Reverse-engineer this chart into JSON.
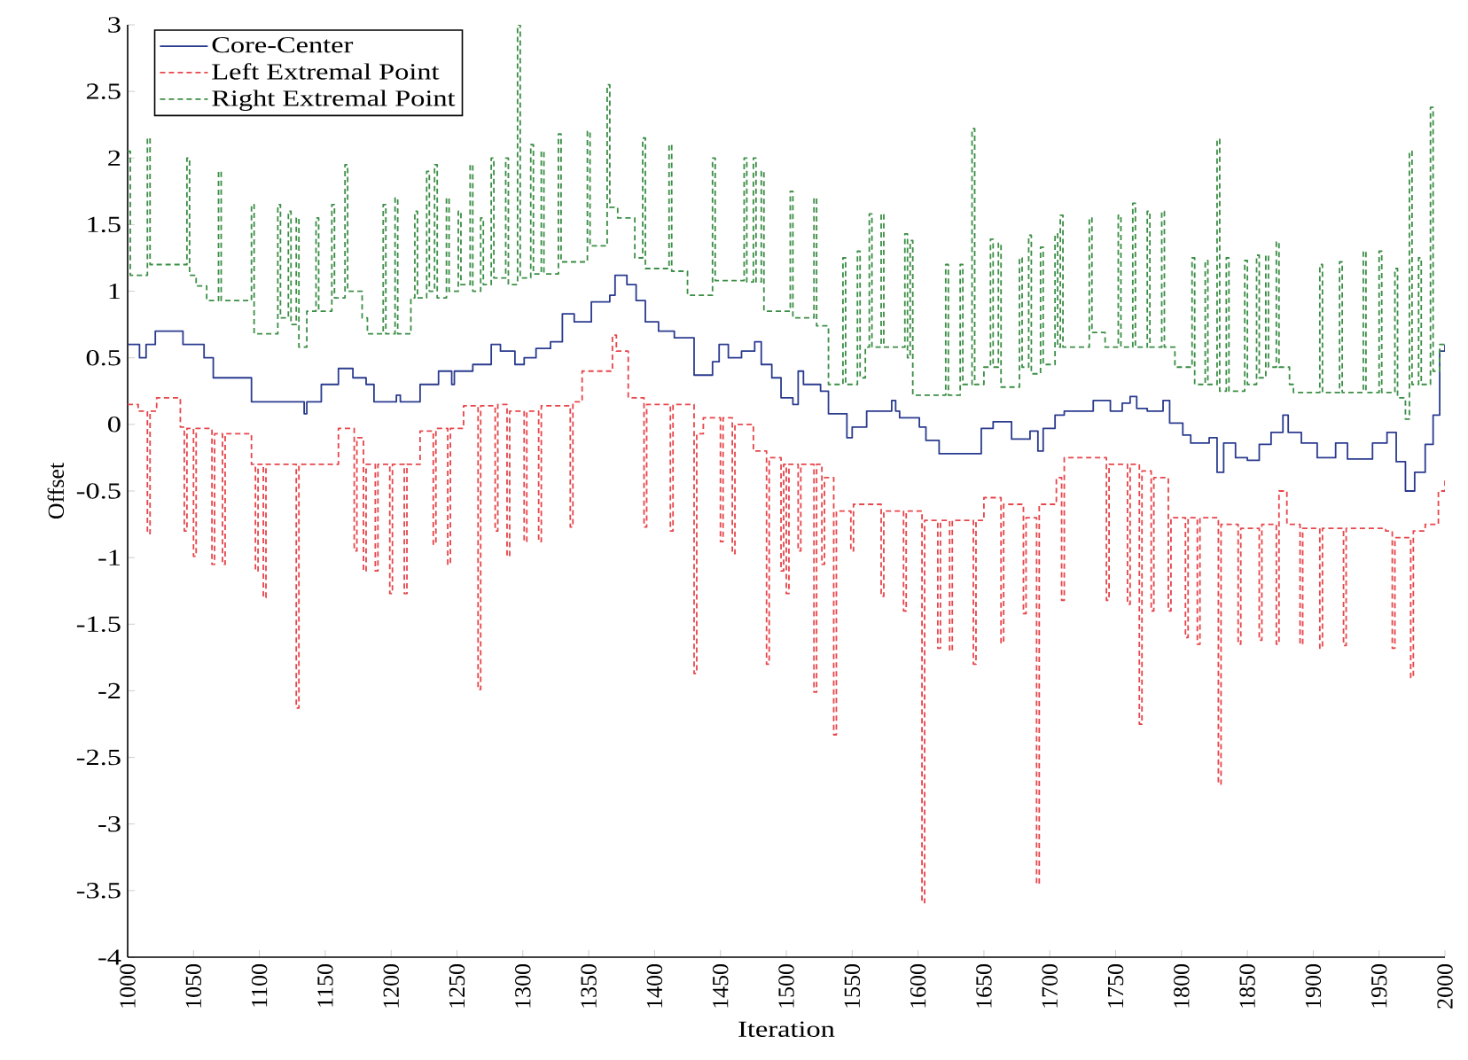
{
  "chart_data": {
    "type": "step",
    "xlabel": "Iteration",
    "ylabel": "Offset",
    "xlim": [
      1000,
      2000
    ],
    "ylim": [
      -4,
      3
    ],
    "xticks": [
      1000,
      1050,
      1100,
      1150,
      1200,
      1250,
      1300,
      1350,
      1400,
      1450,
      1500,
      1550,
      1600,
      1650,
      1700,
      1750,
      1800,
      1850,
      1900,
      1950,
      2000
    ],
    "yticks": [
      -4,
      -3.5,
      -3,
      -2.5,
      -2,
      -1.5,
      -1,
      -0.5,
      0,
      0.5,
      1,
      1.5,
      2,
      2.5,
      3
    ],
    "legend": "top left",
    "marker": "none",
    "series": [
      {
        "name": "Core-Center",
        "color": "#2a3b8f",
        "line_style": "solid",
        "x": [
          1000,
          1009,
          1014,
          1021,
          1042,
          1058,
          1065,
          1094,
          1134,
          1136,
          1147,
          1160,
          1171,
          1181,
          1187,
          1204,
          1207,
          1222,
          1236,
          1246,
          1248,
          1262,
          1276,
          1283,
          1294,
          1301,
          1310,
          1321,
          1330,
          1339,
          1352,
          1366,
          1370,
          1379,
          1386,
          1393,
          1403,
          1415,
          1430,
          1444,
          1449,
          1456,
          1466,
          1476,
          1481,
          1489,
          1496,
          1505,
          1509,
          1513,
          1526,
          1532,
          1546,
          1550,
          1561,
          1580,
          1583,
          1586,
          1601,
          1606,
          1616,
          1648,
          1657,
          1671,
          1685,
          1691,
          1695,
          1704,
          1711,
          1733,
          1746,
          1755,
          1761,
          1766,
          1774,
          1786,
          1791,
          1801,
          1807,
          1821,
          1827,
          1832,
          1841,
          1850,
          1859,
          1868,
          1877,
          1881,
          1891,
          1903,
          1917,
          1926,
          1945,
          1956,
          1963,
          1970,
          1977,
          1985,
          1991,
          1996,
          2000
        ],
        "values": [
          0.6,
          0.5,
          0.6,
          0.7,
          0.6,
          0.5,
          0.35,
          0.17,
          0.08,
          0.17,
          0.3,
          0.42,
          0.35,
          0.3,
          0.17,
          0.22,
          0.17,
          0.3,
          0.4,
          0.3,
          0.4,
          0.45,
          0.6,
          0.55,
          0.45,
          0.5,
          0.57,
          0.62,
          0.83,
          0.77,
          0.92,
          0.97,
          1.12,
          1.05,
          0.93,
          0.77,
          0.7,
          0.65,
          0.37,
          0.47,
          0.6,
          0.5,
          0.55,
          0.62,
          0.45,
          0.35,
          0.2,
          0.15,
          0.4,
          0.3,
          0.25,
          0.08,
          -0.1,
          -0.02,
          0.1,
          0.18,
          0.1,
          0.05,
          -0.02,
          -0.12,
          -0.22,
          -0.03,
          0.02,
          -0.11,
          -0.05,
          -0.2,
          -0.03,
          0.07,
          0.1,
          0.18,
          0.1,
          0.16,
          0.21,
          0.12,
          0.1,
          0.18,
          0.01,
          -0.08,
          -0.14,
          -0.1,
          -0.36,
          -0.14,
          -0.25,
          -0.27,
          -0.15,
          -0.06,
          0.07,
          -0.06,
          -0.14,
          -0.25,
          -0.14,
          -0.26,
          -0.14,
          -0.06,
          -0.28,
          -0.5,
          -0.36,
          -0.15,
          0.07,
          0.55,
          0.6
        ]
      },
      {
        "name": "Left Extremal Point",
        "color": "#e8454a",
        "line_style": "dashed",
        "x": [
          1000,
          1008,
          1015,
          1017,
          1022,
          1040,
          1043,
          1045,
          1050,
          1052,
          1064,
          1066,
          1072,
          1074,
          1094,
          1097,
          1099,
          1103,
          1105,
          1128,
          1130,
          1160,
          1172,
          1174,
          1179,
          1181,
          1188,
          1190,
          1199,
          1201,
          1210,
          1212,
          1222,
          1232,
          1234,
          1243,
          1245,
          1255,
          1266,
          1268,
          1279,
          1281,
          1288,
          1290,
          1301,
          1303,
          1312,
          1314,
          1336,
          1338,
          1345,
          1368,
          1371,
          1380,
          1392,
          1394,
          1412,
          1414,
          1430,
          1432,
          1437,
          1450,
          1452,
          1459,
          1461,
          1475,
          1485,
          1487,
          1496,
          1498,
          1500,
          1502,
          1509,
          1511,
          1521,
          1523,
          1527,
          1529,
          1536,
          1538,
          1549,
          1551,
          1572,
          1574,
          1589,
          1591,
          1603,
          1605,
          1615,
          1617,
          1624,
          1626,
          1642,
          1644,
          1650,
          1663,
          1665,
          1680,
          1682,
          1690,
          1692,
          1705,
          1709,
          1711,
          1743,
          1745,
          1759,
          1761,
          1768,
          1770,
          1777,
          1779,
          1790,
          1792,
          1803,
          1805,
          1812,
          1814,
          1828,
          1830,
          1843,
          1845,
          1859,
          1861,
          1872,
          1874,
          1880,
          1890,
          1892,
          1905,
          1907,
          1923,
          1925,
          1955,
          1960,
          1962,
          1974,
          1976,
          1985,
          1995,
          2000
        ],
        "values": [
          0.15,
          0.1,
          -0.82,
          0.1,
          0.2,
          -0.02,
          -0.8,
          -0.03,
          -0.99,
          -0.03,
          -1.05,
          -0.07,
          -1.05,
          -0.07,
          -0.3,
          -1.1,
          -0.3,
          -1.3,
          -0.3,
          -2.13,
          -0.3,
          -0.03,
          -0.95,
          -0.1,
          -1.1,
          -0.3,
          -1.1,
          -0.3,
          -1.27,
          -0.3,
          -1.27,
          -0.3,
          -0.05,
          -0.9,
          -0.03,
          -1.05,
          -0.03,
          0.14,
          -1.99,
          0.14,
          -0.8,
          0.15,
          -0.99,
          0.1,
          -0.88,
          0.1,
          -0.88,
          0.14,
          -0.77,
          0.17,
          0.4,
          0.67,
          0.55,
          0.2,
          -0.77,
          0.15,
          -0.8,
          0.15,
          -1.87,
          -0.07,
          0.05,
          -0.88,
          0.05,
          -0.97,
          0.0,
          -0.2,
          -1.8,
          -0.25,
          -1.1,
          -0.3,
          -1.27,
          -0.3,
          -0.95,
          -0.3,
          -2.01,
          -0.3,
          -1.05,
          -0.4,
          -2.33,
          -0.65,
          -0.95,
          -0.6,
          -1.29,
          -0.65,
          -1.4,
          -0.65,
          -3.59,
          -0.72,
          -1.68,
          -0.72,
          -1.7,
          -0.72,
          -1.8,
          -0.72,
          -0.55,
          -1.64,
          -0.6,
          -1.42,
          -0.7,
          -3.45,
          -0.6,
          -0.4,
          -1.32,
          -0.25,
          -1.32,
          -0.3,
          -1.35,
          -0.3,
          -2.25,
          -0.35,
          -1.4,
          -0.4,
          -1.4,
          -0.7,
          -1.6,
          -0.7,
          -1.65,
          -0.7,
          -2.7,
          -0.75,
          -1.65,
          -0.78,
          -1.62,
          -0.75,
          -1.65,
          -0.5,
          -0.75,
          -1.65,
          -0.78,
          -1.68,
          -0.78,
          -1.66,
          -0.78,
          -0.8,
          -1.68,
          -0.85,
          -1.9,
          -0.8,
          -0.75,
          -0.5,
          -0.4
        ]
      },
      {
        "name": "Right Extremal Point",
        "color": "#3b8e45",
        "line_style": "dashed",
        "x": [
          1000,
          1002,
          1015,
          1017,
          1045,
          1047,
          1052,
          1060,
          1069,
          1071,
          1094,
          1096,
          1114,
          1116,
          1122,
          1124,
          1128,
          1130,
          1136,
          1143,
          1145,
          1155,
          1157,
          1165,
          1167,
          1178,
          1182,
          1194,
          1196,
          1203,
          1205,
          1215,
          1218,
          1220,
          1227,
          1229,
          1233,
          1235,
          1242,
          1244,
          1251,
          1253,
          1260,
          1262,
          1268,
          1270,
          1276,
          1278,
          1287,
          1289,
          1296,
          1298,
          1306,
          1308,
          1314,
          1316,
          1327,
          1329,
          1349,
          1351,
          1364,
          1366,
          1372,
          1385,
          1391,
          1393,
          1411,
          1413,
          1425,
          1444,
          1446,
          1468,
          1470,
          1475,
          1477,
          1481,
          1483,
          1503,
          1505,
          1521,
          1523,
          1532,
          1543,
          1545,
          1554,
          1556,
          1560,
          1563,
          1565,
          1572,
          1574,
          1590,
          1592,
          1594,
          1596,
          1621,
          1623,
          1632,
          1634,
          1641,
          1643,
          1650,
          1655,
          1657,
          1661,
          1663,
          1677,
          1679,
          1684,
          1686,
          1693,
          1695,
          1704,
          1706,
          1708,
          1710,
          1730,
          1732,
          1742,
          1752,
          1754,
          1763,
          1765,
          1774,
          1776,
          1785,
          1787,
          1795,
          1808,
          1810,
          1818,
          1820,
          1827,
          1829,
          1834,
          1836,
          1848,
          1850,
          1857,
          1859,
          1864,
          1866,
          1872,
          1874,
          1882,
          1885,
          1905,
          1907,
          1920,
          1922,
          1938,
          1940,
          1950,
          1952,
          1962,
          1964,
          1970,
          1973,
          1975,
          1980,
          1982,
          1989,
          1991,
          1996,
          2000
        ],
        "values": [
          2.05,
          1.12,
          2.15,
          1.2,
          2.0,
          1.12,
          1.04,
          0.93,
          1.9,
          0.93,
          1.65,
          0.68,
          1.65,
          0.8,
          1.6,
          0.75,
          1.55,
          0.58,
          0.85,
          1.55,
          0.85,
          1.65,
          0.95,
          1.95,
          1.0,
          0.8,
          0.68,
          1.65,
          0.68,
          1.7,
          0.68,
          0.95,
          1.6,
          0.95,
          1.9,
          1.0,
          1.95,
          0.95,
          1.7,
          1.0,
          1.6,
          1.05,
          1.95,
          1.0,
          1.55,
          1.05,
          2.0,
          1.1,
          2.0,
          1.05,
          3.0,
          1.1,
          2.1,
          1.13,
          2.05,
          1.13,
          2.18,
          1.22,
          2.2,
          1.34,
          2.55,
          1.63,
          1.55,
          1.25,
          2.15,
          1.17,
          2.1,
          1.15,
          0.97,
          2.0,
          1.08,
          2.0,
          1.07,
          2.0,
          1.07,
          1.9,
          0.85,
          1.75,
          0.8,
          1.7,
          0.74,
          0.3,
          1.25,
          0.3,
          1.3,
          0.35,
          0.58,
          1.58,
          0.58,
          1.58,
          0.58,
          1.43,
          0.5,
          1.38,
          0.22,
          1.2,
          0.22,
          1.2,
          0.3,
          2.22,
          0.3,
          0.43,
          1.39,
          0.43,
          1.36,
          0.28,
          1.25,
          0.43,
          1.42,
          0.38,
          1.33,
          0.45,
          1.43,
          0.58,
          1.57,
          0.58,
          1.55,
          0.69,
          0.58,
          1.57,
          0.58,
          1.66,
          0.58,
          1.6,
          0.58,
          1.6,
          0.58,
          0.43,
          1.25,
          0.3,
          1.23,
          0.3,
          2.14,
          0.25,
          1.25,
          0.25,
          1.23,
          0.3,
          1.27,
          0.35,
          1.27,
          0.43,
          1.37,
          0.43,
          0.3,
          0.24,
          1.2,
          0.24,
          1.22,
          0.24,
          1.3,
          0.24,
          1.3,
          0.24,
          1.17,
          0.2,
          0.04,
          2.05,
          0.3,
          1.25,
          0.3,
          2.38,
          0.4,
          0.6,
          0.6
        ]
      }
    ]
  }
}
